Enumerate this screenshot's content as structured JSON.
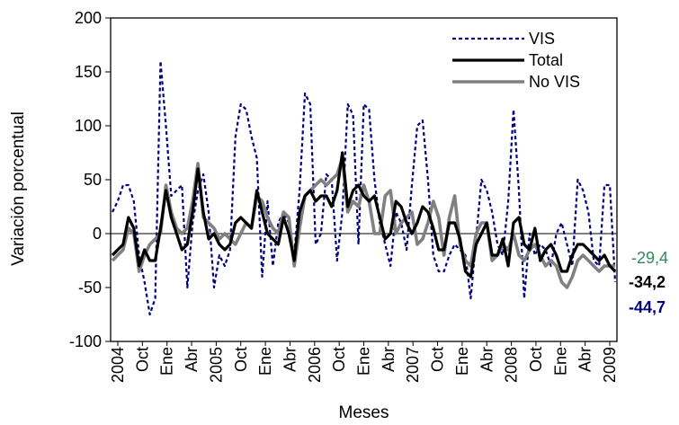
{
  "chart_data": {
    "type": "line",
    "xlabel": "Meses",
    "ylabel": "Variación porcentual",
    "ylim": [
      -100,
      200
    ],
    "yticks": [
      "200",
      "150",
      "100",
      "50",
      "0",
      "-50",
      "-100"
    ],
    "xtick_labels": [
      "2004",
      "Oct",
      "Ene",
      "Abr",
      "2005",
      "Oct",
      "Ene",
      "Abr",
      "2006",
      "Oct",
      "Ene",
      "Abr",
      "2007",
      "Oct",
      "Ene",
      "Abr",
      "2008",
      "Oct",
      "Ene",
      "Abr",
      "2009"
    ],
    "legend_position": "top-right",
    "grid": false,
    "series": [
      {
        "name": "VIS",
        "color": "#000080",
        "style": "dotted",
        "end_label": "-44,7",
        "values": [
          20,
          30,
          45,
          45,
          30,
          -20,
          -45,
          -75,
          -60,
          160,
          100,
          35,
          40,
          45,
          -50,
          10,
          40,
          55,
          20,
          -50,
          -20,
          -30,
          -15,
          90,
          120,
          115,
          90,
          70,
          -40,
          30,
          -30,
          10,
          20,
          10,
          -20,
          40,
          130,
          120,
          -10,
          0,
          55,
          50,
          -25,
          20,
          120,
          110,
          -10,
          120,
          115,
          50,
          10,
          -10,
          -30,
          20,
          10,
          -15,
          45,
          100,
          105,
          50,
          -20,
          -35,
          -35,
          -20,
          -10,
          -15,
          -20,
          -60,
          -5,
          50,
          40,
          20,
          -10,
          -20,
          30,
          115,
          40,
          -60,
          0,
          -20,
          -10,
          -15,
          -30,
          0,
          10,
          -10,
          -30,
          50,
          40,
          20,
          -25,
          -30,
          45,
          45,
          -45
        ]
      },
      {
        "name": "Total",
        "color": "#000000",
        "style": "solid",
        "end_label": "-34,2",
        "values": [
          -20,
          -15,
          -10,
          15,
          5,
          -30,
          -15,
          -25,
          -25,
          5,
          40,
          15,
          0,
          -15,
          -10,
          20,
          60,
          20,
          -5,
          0,
          -10,
          -15,
          -10,
          10,
          15,
          10,
          5,
          40,
          20,
          0,
          -5,
          -10,
          15,
          0,
          -25,
          20,
          35,
          40,
          30,
          35,
          35,
          25,
          40,
          75,
          25,
          40,
          45,
          35,
          30,
          35,
          15,
          -5,
          0,
          30,
          25,
          10,
          0,
          10,
          25,
          20,
          5,
          -15,
          -15,
          10,
          10,
          -5,
          -35,
          -40,
          -10,
          0,
          10,
          -20,
          -20,
          -5,
          -30,
          10,
          15,
          -10,
          -15,
          5,
          -25,
          -15,
          -10,
          -20,
          -35,
          -35,
          -20,
          -10,
          -10,
          -15,
          -20,
          -25,
          -20,
          -30,
          -35
        ]
      },
      {
        "name": "No VIS",
        "color": "#808080",
        "style": "solid",
        "end_label": "-29,4",
        "values": [
          -25,
          -20,
          -15,
          5,
          0,
          -35,
          -20,
          -10,
          -5,
          0,
          45,
          20,
          5,
          0,
          5,
          30,
          65,
          15,
          10,
          5,
          -5,
          0,
          -5,
          -10,
          0,
          10,
          5,
          35,
          30,
          15,
          5,
          0,
          20,
          15,
          -30,
          5,
          35,
          40,
          45,
          50,
          45,
          50,
          55,
          70,
          20,
          30,
          25,
          45,
          30,
          0,
          0,
          35,
          40,
          0,
          10,
          15,
          20,
          -10,
          -5,
          10,
          30,
          15,
          -20,
          15,
          35,
          -10,
          -25,
          -30,
          0,
          10,
          10,
          -25,
          -20,
          -10,
          -15,
          0,
          -20,
          -25,
          -15,
          -10,
          -20,
          -30,
          -25,
          -30,
          -45,
          -50,
          -40,
          -25,
          -20,
          -25,
          -30,
          -35,
          -30,
          -30,
          -30
        ]
      }
    ]
  }
}
